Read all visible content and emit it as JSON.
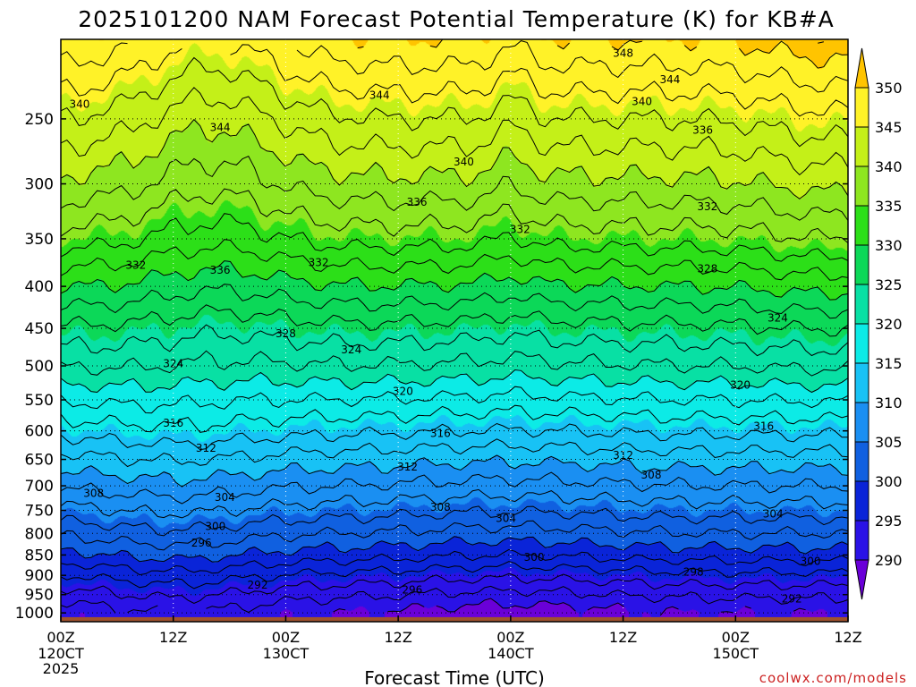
{
  "chart_data": {
    "type": "heatmap",
    "title": "2025101200 NAM Forecast Potential Temperature (K) for KB#A",
    "xlabel": "Forecast Time (UTC)",
    "ylabel": "",
    "credit": "coolwx.com/models",
    "x_ticks": [
      {
        "hour": 0,
        "label": "00Z",
        "day": "120CT",
        "year": "2025"
      },
      {
        "hour": 12,
        "label": "12Z",
        "day": "",
        "year": ""
      },
      {
        "hour": 24,
        "label": "00Z",
        "day": "130CT",
        "year": ""
      },
      {
        "hour": 36,
        "label": "12Z",
        "day": "",
        "year": ""
      },
      {
        "hour": 48,
        "label": "00Z",
        "day": "140CT",
        "year": ""
      },
      {
        "hour": 60,
        "label": "12Z",
        "day": "",
        "year": ""
      },
      {
        "hour": 72,
        "label": "00Z",
        "day": "150CT",
        "year": ""
      },
      {
        "hour": 84,
        "label": "12Z",
        "day": "",
        "year": ""
      }
    ],
    "xlim": [
      0,
      84
    ],
    "y_ticks": [
      250,
      300,
      350,
      400,
      450,
      500,
      550,
      600,
      650,
      700,
      750,
      800,
      850,
      900,
      950,
      1000
    ],
    "ylim": [
      1025,
      200
    ],
    "y_scale": "log-pressure (inverted)",
    "grid": true,
    "colorbar": {
      "levels": [
        290,
        295,
        300,
        305,
        310,
        315,
        320,
        325,
        330,
        335,
        340,
        345,
        350
      ],
      "colors": [
        "#6a00d8",
        "#2a12e6",
        "#0a24d8",
        "#1060e0",
        "#1a8ff2",
        "#18c2f5",
        "#0cebe6",
        "#08e0a4",
        "#0cd858",
        "#2cdf18",
        "#8ee620",
        "#c4f018",
        "#fff228",
        "#ffc400"
      ],
      "extend": "both"
    },
    "surface_color": "#a0522d",
    "contour_interval_K": 2,
    "contour_levels": [
      286,
      288,
      290,
      292,
      294,
      296,
      298,
      300,
      302,
      304,
      306,
      308,
      310,
      312,
      314,
      316,
      318,
      320,
      322,
      324,
      326,
      328,
      330,
      332,
      334,
      336,
      338,
      340,
      342,
      344,
      346,
      348,
      350,
      352
    ],
    "theta_profile_p": [
      1000,
      950,
      900,
      850,
      800,
      750,
      700,
      650,
      600,
      550,
      500,
      450,
      400,
      350,
      300,
      250,
      200
    ],
    "theta_base_K": [
      290,
      292.5,
      295.5,
      299,
      302,
      305,
      308,
      311,
      314.5,
      318,
      322,
      325.5,
      330,
      335,
      339.5,
      344,
      350
    ],
    "series": [
      {
        "name": "292",
        "hour": 21,
        "p": 925
      },
      {
        "name": "296",
        "hour": 37.5,
        "p": 938
      },
      {
        "name": "300",
        "hour": 50.5,
        "p": 855
      },
      {
        "name": "300",
        "hour": 80,
        "p": 865
      },
      {
        "name": "298",
        "hour": 67.5,
        "p": 892
      },
      {
        "name": "292",
        "hour": 78,
        "p": 962
      },
      {
        "name": "296",
        "hour": 15,
        "p": 822
      },
      {
        "name": "300",
        "hour": 16.5,
        "p": 785
      },
      {
        "name": "304",
        "hour": 17.5,
        "p": 723
      },
      {
        "name": "308",
        "hour": 3.5,
        "p": 715
      },
      {
        "name": "308",
        "hour": 40.5,
        "p": 743
      },
      {
        "name": "304",
        "hour": 47.5,
        "p": 767
      },
      {
        "name": "308",
        "hour": 63,
        "p": 679
      },
      {
        "name": "304",
        "hour": 76,
        "p": 757
      },
      {
        "name": "312",
        "hour": 15.5,
        "p": 630
      },
      {
        "name": "316",
        "hour": 12,
        "p": 587
      },
      {
        "name": "312",
        "hour": 37,
        "p": 664
      },
      {
        "name": "316",
        "hour": 40.5,
        "p": 604
      },
      {
        "name": "312",
        "hour": 60,
        "p": 643
      },
      {
        "name": "316",
        "hour": 75,
        "p": 592
      },
      {
        "name": "320",
        "hour": 36.5,
        "p": 537
      },
      {
        "name": "320",
        "hour": 72.5,
        "p": 528
      },
      {
        "name": "324",
        "hour": 12,
        "p": 497
      },
      {
        "name": "324",
        "hour": 31,
        "p": 478
      },
      {
        "name": "328",
        "hour": 24,
        "p": 457
      },
      {
        "name": "324",
        "hour": 76.5,
        "p": 437
      },
      {
        "name": "328",
        "hour": 69,
        "p": 381
      },
      {
        "name": "332",
        "hour": 8,
        "p": 377
      },
      {
        "name": "336",
        "hour": 17,
        "p": 382
      },
      {
        "name": "332",
        "hour": 27.5,
        "p": 374
      },
      {
        "name": "332",
        "hour": 49,
        "p": 341
      },
      {
        "name": "332",
        "hour": 69,
        "p": 320
      },
      {
        "name": "336",
        "hour": 38,
        "p": 316
      },
      {
        "name": "340",
        "hour": 43,
        "p": 282
      },
      {
        "name": "336",
        "hour": 68.5,
        "p": 258
      },
      {
        "name": "340",
        "hour": 2,
        "p": 240
      },
      {
        "name": "344",
        "hour": 17,
        "p": 256
      },
      {
        "name": "344",
        "hour": 34,
        "p": 234
      },
      {
        "name": "340",
        "hour": 62,
        "p": 238
      },
      {
        "name": "344",
        "hour": 65,
        "p": 224
      },
      {
        "name": "348",
        "hour": 60,
        "p": 208
      }
    ]
  }
}
